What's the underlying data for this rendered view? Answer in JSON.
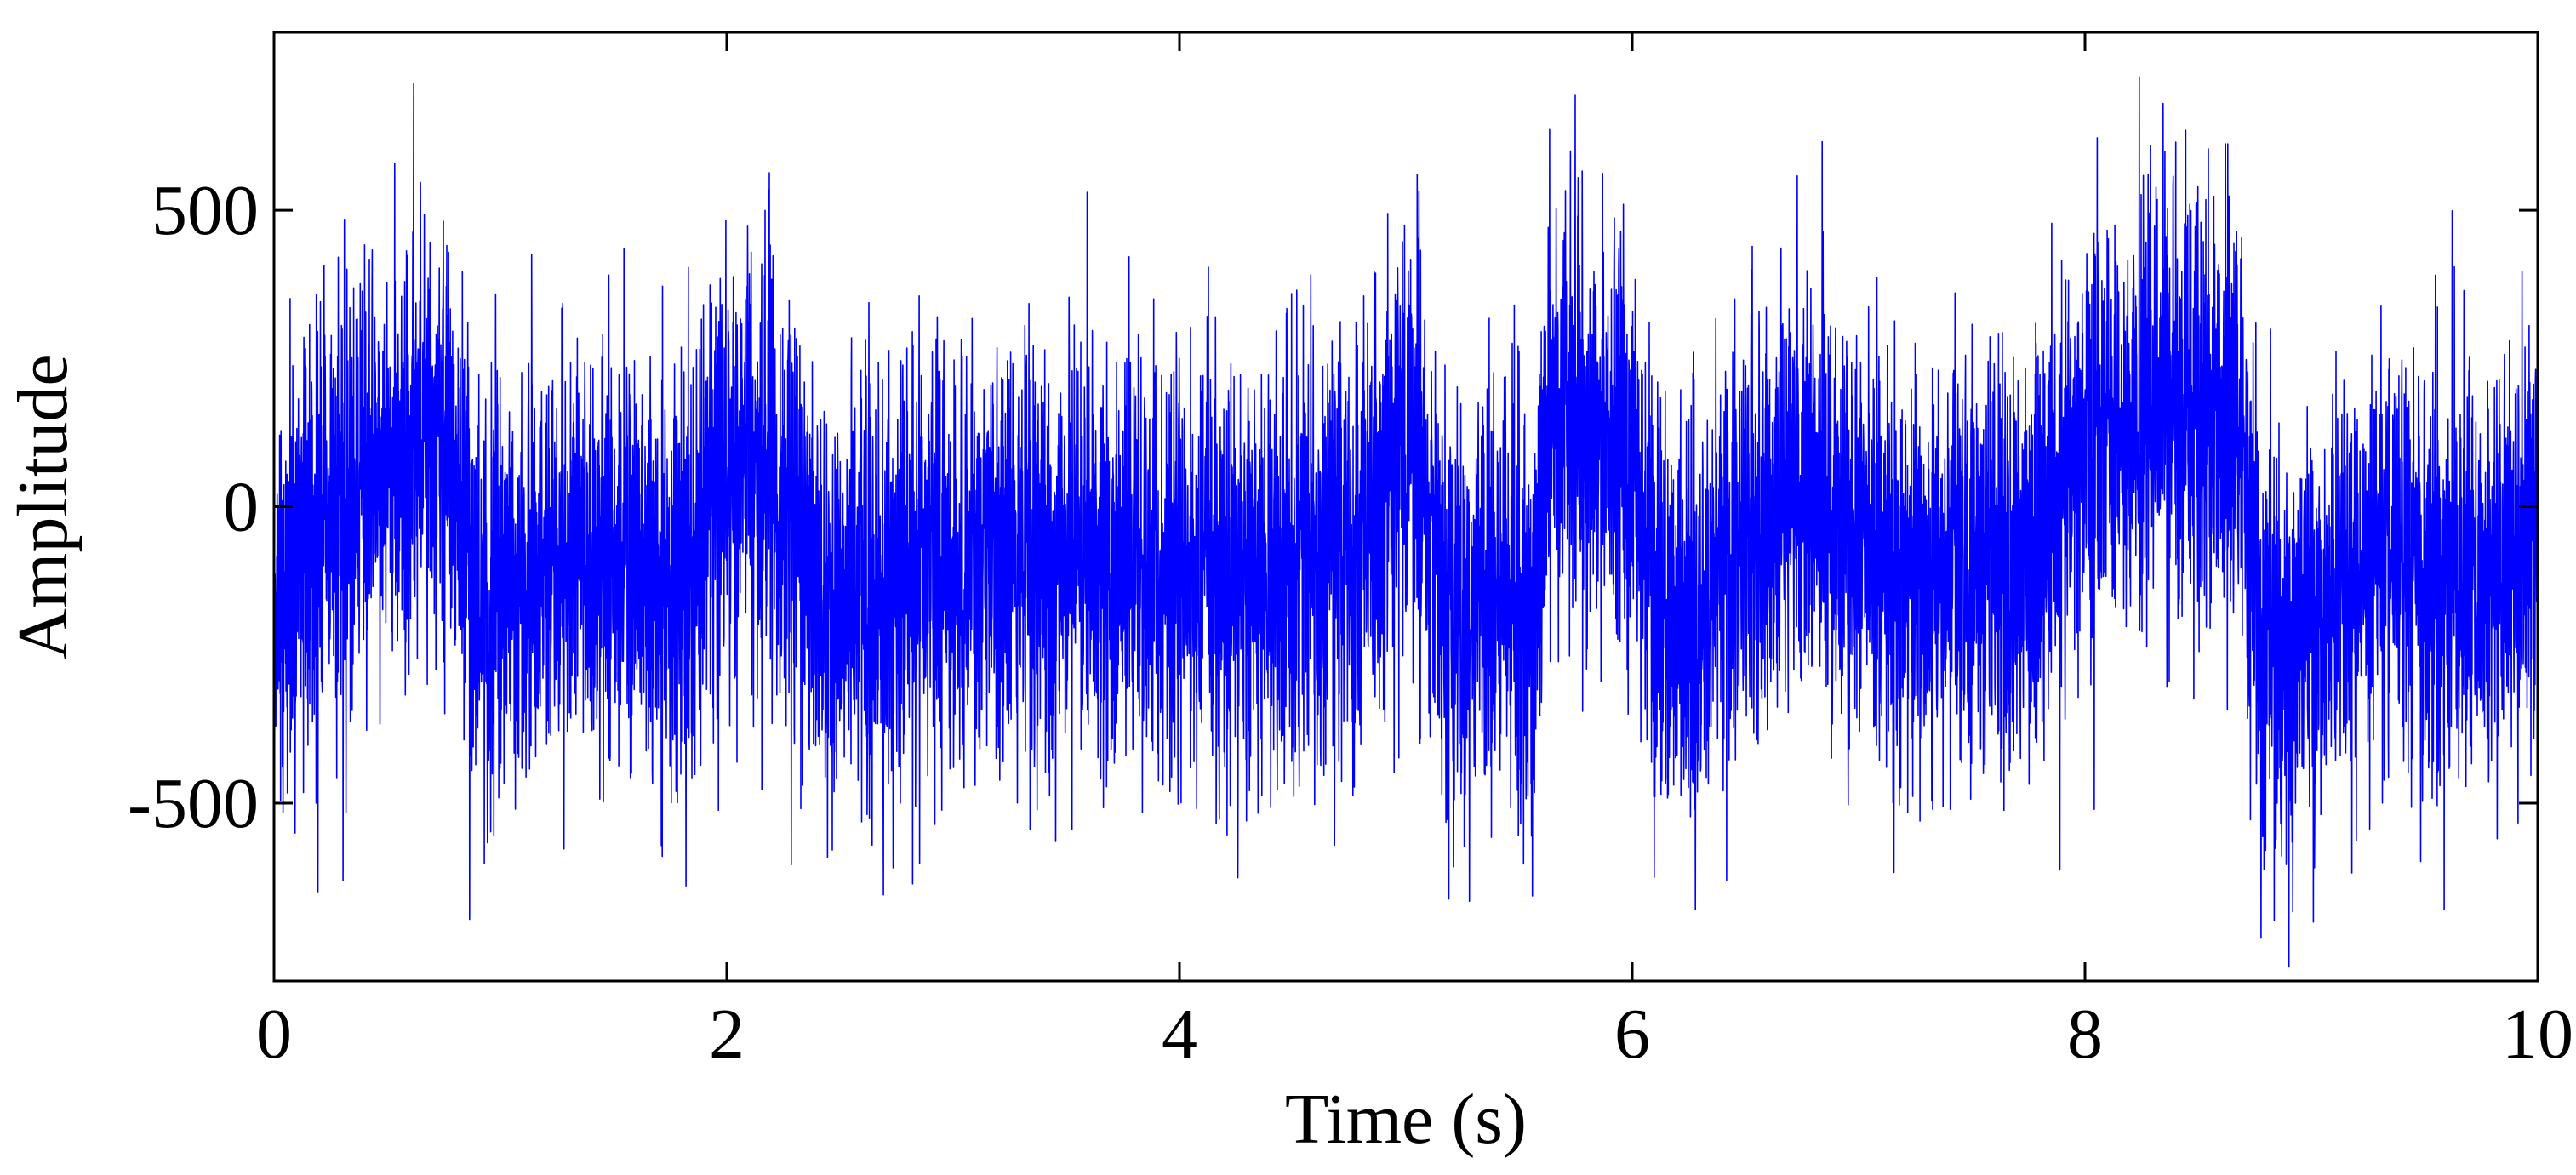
{
  "chart_data": {
    "type": "line",
    "title": "",
    "xlabel": "Time (s)",
    "ylabel": "Amplitude",
    "xlim": [
      0,
      10
    ],
    "ylim": [
      -800,
      800
    ],
    "xticks": [
      0,
      2,
      4,
      6,
      8,
      10
    ],
    "xtick_labels": [
      "0",
      "2",
      "4",
      "6",
      "8",
      "10"
    ],
    "yticks": [
      -500,
      0,
      500
    ],
    "ytick_labels": [
      "-500",
      "0",
      "500"
    ],
    "grid": false,
    "legend": "none",
    "series": [
      {
        "color": "#0000ff",
        "sample_rate_hz": 1000,
        "noise_std": 175,
        "envelope": {
          "x": [
            0,
            0.3,
            0.6,
            0.75,
            0.9,
            1.2,
            1.5,
            1.8,
            2.0,
            2.1,
            2.3,
            2.45,
            2.7,
            3.0,
            3.5,
            4.0,
            4.5,
            4.8,
            4.9,
            5.0,
            5.2,
            5.4,
            5.55,
            5.65,
            5.8,
            6.0,
            6.1,
            6.25,
            6.5,
            6.8,
            7.0,
            7.2,
            7.5,
            7.8,
            8.0,
            8.2,
            8.5,
            8.65,
            8.8,
            9.0,
            9.3,
            9.6,
            10.0
          ],
          "y": [
            -150,
            0,
            120,
            140,
            -150,
            -120,
            -80,
            -120,
            50,
            110,
            -10,
            -170,
            -120,
            -100,
            -70,
            -100,
            -110,
            -40,
            80,
            120,
            -180,
            -150,
            -190,
            190,
            150,
            90,
            -140,
            -220,
            -30,
            50,
            -60,
            -140,
            -120,
            -60,
            100,
            150,
            180,
            140,
            -240,
            -200,
            -60,
            -140,
            -110
          ]
        }
      }
    ]
  }
}
